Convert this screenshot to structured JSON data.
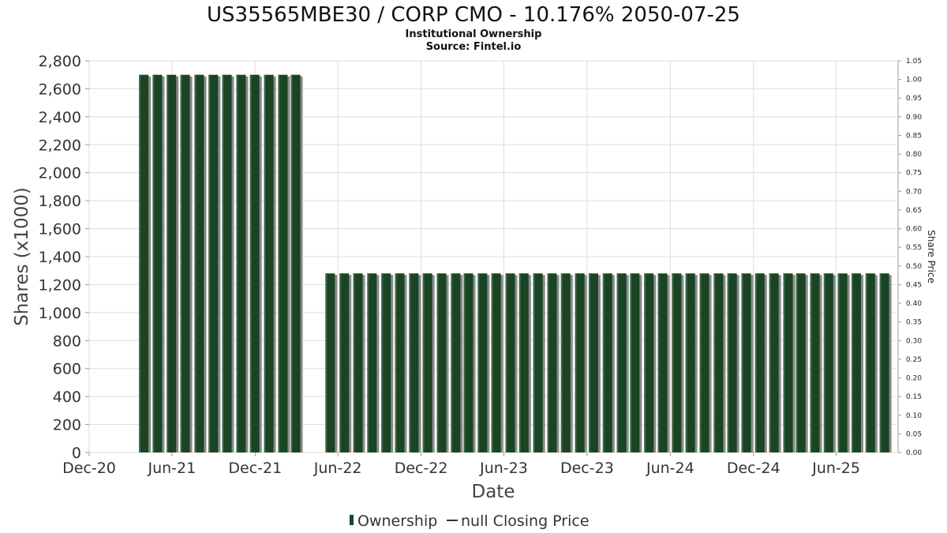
{
  "chart_data": {
    "type": "bar",
    "title": "US35565MBE30 / CORP CMO - 10.176% 2050-07-25",
    "subtitle_lines": [
      "Institutional Ownership",
      "Source: Fintel.io"
    ],
    "xlabel": "Date",
    "ylabel": "Shares (x1000)",
    "y2label": "Share Price",
    "x_ticks": [
      "Dec-20",
      "Jun-21",
      "Dec-21",
      "Jun-22",
      "Dec-22",
      "Jun-23",
      "Dec-23",
      "Jun-24",
      "Dec-24",
      "Jun-25"
    ],
    "y_ticks": [
      "0",
      "200",
      "400",
      "600",
      "800",
      "1,000",
      "1,200",
      "1,400",
      "1,600",
      "1,800",
      "2,000",
      "2,200",
      "2,400",
      "2,600",
      "2,800"
    ],
    "y2_ticks": [
      "0.00",
      "0.05",
      "0.10",
      "0.15",
      "0.20",
      "0.25",
      "0.30",
      "0.35",
      "0.40",
      "0.45",
      "0.50",
      "0.55",
      "0.60",
      "0.65",
      "0.70",
      "0.75",
      "0.80",
      "0.85",
      "0.90",
      "0.95",
      "1.00",
      "1.05"
    ],
    "ylim": [
      0,
      2800
    ],
    "y2lim": [
      0,
      1.05
    ],
    "xlim": [
      "2020-12-01",
      "2025-10-15"
    ],
    "grid": true,
    "legend_position": "bottom",
    "series": [
      {
        "name": "Ownership",
        "color": "#1a4424",
        "x": [
          "2021-03-31",
          "2021-04-30",
          "2021-05-31",
          "2021-06-30",
          "2021-07-31",
          "2021-08-31",
          "2021-09-30",
          "2021-10-31",
          "2021-11-30",
          "2021-12-31",
          "2022-01-31",
          "2022-02-28",
          "2022-05-15",
          "2022-06-15",
          "2022-07-15",
          "2022-08-15",
          "2022-09-15",
          "2022-10-15",
          "2022-11-15",
          "2022-12-15",
          "2023-01-15",
          "2023-02-15",
          "2023-03-15",
          "2023-04-15",
          "2023-05-15",
          "2023-06-15",
          "2023-07-15",
          "2023-08-15",
          "2023-09-15",
          "2023-10-15",
          "2023-11-15",
          "2023-12-15",
          "2024-01-15",
          "2024-02-15",
          "2024-03-15",
          "2024-04-15",
          "2024-05-15",
          "2024-06-15",
          "2024-07-15",
          "2024-08-15",
          "2024-09-15",
          "2024-10-15",
          "2024-11-15",
          "2024-12-15",
          "2025-01-15",
          "2025-02-15",
          "2025-03-15",
          "2025-04-15",
          "2025-05-15",
          "2025-06-15",
          "2025-07-15",
          "2025-08-15",
          "2025-09-15"
        ],
        "values": [
          2700,
          2700,
          2700,
          2700,
          2700,
          2700,
          2700,
          2700,
          2700,
          2700,
          2700,
          2700,
          1280,
          1280,
          1280,
          1280,
          1280,
          1280,
          1280,
          1280,
          1280,
          1280,
          1280,
          1280,
          1280,
          1280,
          1280,
          1280,
          1280,
          1280,
          1280,
          1280,
          1280,
          1280,
          1280,
          1280,
          1280,
          1280,
          1280,
          1280,
          1280,
          1280,
          1280,
          1280,
          1280,
          1280,
          1280,
          1280,
          1280,
          1280,
          1280,
          1280,
          1280
        ]
      }
    ],
    "legend": {
      "ownership_label": "Ownership",
      "price_label": "null Closing Price"
    }
  }
}
